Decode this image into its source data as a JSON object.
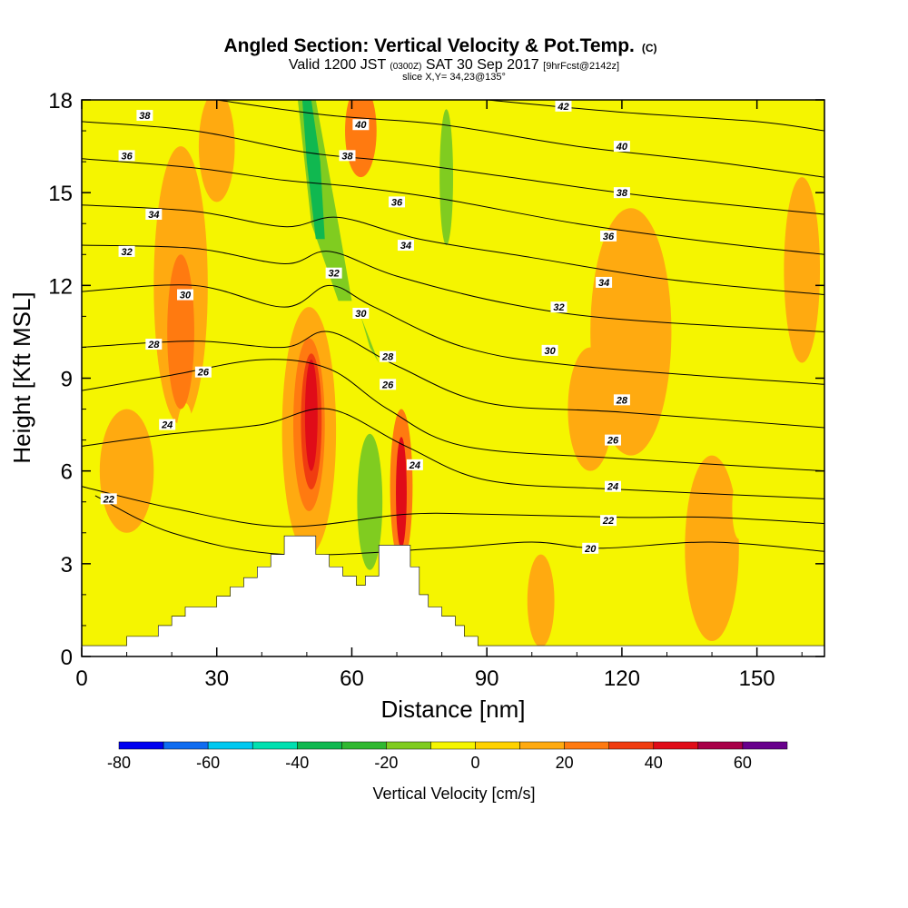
{
  "header": {
    "title": "Angled Section: Vertical Velocity & Pot.Temp.",
    "title_unit": "(C)",
    "valid_prefix": "Valid 1200 JST",
    "valid_z": "(0300Z)",
    "valid_date": "SAT 30 Sep 2017",
    "valid_fcst": "[9hrFcst@2142z]",
    "slice": "slice X,Y= 34,23@135°"
  },
  "chart_data": {
    "type": "contour",
    "xlabel": "Distance [nm]",
    "ylabel": "Height [Kft MSL]",
    "xlim": [
      0,
      165
    ],
    "ylim": [
      0,
      18
    ],
    "x_ticks": [
      0,
      30,
      60,
      90,
      120,
      150
    ],
    "y_ticks": [
      0,
      3,
      6,
      9,
      12,
      15,
      18
    ],
    "field_background_color": "#f5f500",
    "colorbar": {
      "label": "Vertical Velocity [cm/s]",
      "tick_values": [
        -80,
        -60,
        -40,
        -20,
        0,
        20,
        40,
        60
      ],
      "levels": [
        -80,
        -70,
        -60,
        -50,
        -40,
        -30,
        -20,
        -10,
        0,
        10,
        20,
        30,
        40,
        50,
        60,
        70
      ],
      "colors": [
        "#0000f0",
        "#0f6cf0",
        "#00c8f0",
        "#00e0b0",
        "#10b850",
        "#30b830",
        "#80cc20",
        "#f5f500",
        "#ffd200",
        "#ffaa10",
        "#ff7a10",
        "#f03c10",
        "#e00c18",
        "#a80048",
        "#68008c"
      ]
    },
    "vertical_velocity_cells": [
      {
        "x": 50.5,
        "y": 7.3,
        "rx": 6.0,
        "ry": 4.0,
        "value": 10
      },
      {
        "x": 50.5,
        "y": 7.5,
        "rx": 3.5,
        "ry": 2.8,
        "value": 20
      },
      {
        "x": 51,
        "y": 7.6,
        "rx": 2.3,
        "ry": 2.2,
        "value": 30
      },
      {
        "x": 51,
        "y": 7.8,
        "rx": 1.4,
        "ry": 1.8,
        "value": 40
      },
      {
        "x": 71,
        "y": 5.5,
        "rx": 2.5,
        "ry": 2.5,
        "value": 20
      },
      {
        "x": 71,
        "y": 5.3,
        "rx": 1.2,
        "ry": 1.8,
        "value": 40
      },
      {
        "x": 22,
        "y": 12.0,
        "rx": 6.0,
        "ry": 4.5,
        "value": 10
      },
      {
        "x": 22,
        "y": 10.5,
        "rx": 3.0,
        "ry": 2.5,
        "value": 20
      },
      {
        "x": 30,
        "y": 16.5,
        "rx": 4.0,
        "ry": 1.8,
        "value": 10
      },
      {
        "x": 62,
        "y": 17.0,
        "rx": 3.5,
        "ry": 1.5,
        "value": 20
      },
      {
        "x": 122,
        "y": 10.5,
        "rx": 9.0,
        "ry": 4.0,
        "value": 10
      },
      {
        "x": 102,
        "y": 1.8,
        "rx": 3.0,
        "ry": 1.5,
        "value": 10
      },
      {
        "x": 140,
        "y": 3.5,
        "rx": 6.0,
        "ry": 3.0,
        "value": 10
      },
      {
        "x": 160,
        "y": 12.5,
        "rx": 4.0,
        "ry": 3.0,
        "value": 10
      },
      {
        "x": 10,
        "y": 6.0,
        "rx": 6.0,
        "ry": 2.0,
        "value": 10
      },
      {
        "x": 113,
        "y": 8.0,
        "rx": 5.0,
        "ry": 2.0,
        "value": 10
      },
      {
        "x": 65,
        "y": 7.0,
        "rx": 4.0,
        "ry": 3.5,
        "value": -10
      },
      {
        "x": 64,
        "y": 5.0,
        "rx": 2.8,
        "ry": 2.2,
        "value": -20
      },
      {
        "x": 80,
        "y": 14.8,
        "rx": 3.8,
        "ry": 3.2,
        "value": -10
      },
      {
        "x": 81,
        "y": 15.5,
        "rx": 1.5,
        "ry": 2.2,
        "value": -20
      },
      {
        "x": 12,
        "y": 16.0,
        "rx": 3.0,
        "ry": 1.8,
        "value": -10
      },
      {
        "x": 23,
        "y": 6.0,
        "rx": 2.5,
        "ry": 2.2,
        "value": -10
      },
      {
        "x": 101,
        "y": 11.0,
        "rx": 2.5,
        "ry": 1.6,
        "value": -10
      },
      {
        "x": 146,
        "y": 4.8,
        "rx": 1.5,
        "ry": 1.0,
        "value": -10
      },
      {
        "x": 95,
        "y": 2.0,
        "rx": 1.5,
        "ry": 1.0,
        "value": -10
      }
    ],
    "vertical_velocity_bands": [
      {
        "points": [
          [
            46,
            18
          ],
          [
            54,
            18
          ],
          [
            61,
            13
          ],
          [
            65,
            9.5
          ],
          [
            61,
            9
          ],
          [
            54,
            11
          ],
          [
            48,
            14
          ]
        ],
        "value": -10
      },
      {
        "points": [
          [
            48,
            18
          ],
          [
            52,
            18
          ],
          [
            57,
            14
          ],
          [
            60,
            11.5
          ],
          [
            57,
            11.5
          ],
          [
            51,
            14
          ]
        ],
        "value": -20
      },
      {
        "points": [
          [
            49,
            18
          ],
          [
            51,
            18
          ],
          [
            53,
            16
          ],
          [
            54,
            13.5
          ],
          [
            52,
            13.5
          ],
          [
            50,
            16
          ]
        ],
        "value": -40
      },
      {
        "points": [
          [
            60,
            12
          ],
          [
            64,
            10
          ],
          [
            66,
            9.5
          ],
          [
            62,
            11
          ]
        ],
        "value": -20
      }
    ],
    "potential_temperature_contours": [
      {
        "label": "20",
        "points": [
          [
            3,
            5.2
          ],
          [
            20,
            4.0
          ],
          [
            45,
            3.3
          ],
          [
            80,
            3.5
          ],
          [
            100,
            3.7
          ],
          [
            115,
            3.5
          ],
          [
            140,
            3.7
          ],
          [
            165,
            3.4
          ]
        ]
      },
      {
        "label": "22",
        "points": [
          [
            0,
            5.5
          ],
          [
            20,
            4.8
          ],
          [
            45,
            4.2
          ],
          [
            72,
            4.6
          ],
          [
            90,
            4.6
          ],
          [
            120,
            4.5
          ],
          [
            140,
            4.5
          ],
          [
            165,
            4.3
          ]
        ]
      },
      {
        "label": "24",
        "points": [
          [
            0,
            6.8
          ],
          [
            20,
            7.2
          ],
          [
            40,
            7.5
          ],
          [
            55,
            8.0
          ],
          [
            72,
            6.8
          ],
          [
            90,
            5.7
          ],
          [
            120,
            5.4
          ],
          [
            165,
            5.1
          ]
        ]
      },
      {
        "label": "26",
        "points": [
          [
            0,
            8.6
          ],
          [
            20,
            9.1
          ],
          [
            40,
            9.6
          ],
          [
            55,
            9.3
          ],
          [
            68,
            8.0
          ],
          [
            85,
            6.8
          ],
          [
            120,
            6.4
          ],
          [
            165,
            6.0
          ]
        ]
      },
      {
        "label": "28",
        "points": [
          [
            0,
            10.0
          ],
          [
            25,
            10.2
          ],
          [
            45,
            10.0
          ],
          [
            55,
            10.5
          ],
          [
            70,
            9.4
          ],
          [
            90,
            8.2
          ],
          [
            120,
            7.9
          ],
          [
            165,
            7.4
          ]
        ]
      },
      {
        "label": "30",
        "points": [
          [
            0,
            11.8
          ],
          [
            25,
            12.0
          ],
          [
            45,
            11.3
          ],
          [
            55,
            12.0
          ],
          [
            65,
            11.3
          ],
          [
            85,
            10.0
          ],
          [
            110,
            9.4
          ],
          [
            165,
            8.8
          ]
        ]
      },
      {
        "label": "32",
        "points": [
          [
            0,
            13.3
          ],
          [
            25,
            13.2
          ],
          [
            45,
            12.7
          ],
          [
            55,
            13.1
          ],
          [
            70,
            12.3
          ],
          [
            95,
            11.4
          ],
          [
            120,
            10.9
          ],
          [
            165,
            10.5
          ]
        ]
      },
      {
        "label": "34",
        "points": [
          [
            0,
            14.6
          ],
          [
            25,
            14.4
          ],
          [
            45,
            13.9
          ],
          [
            57,
            14.2
          ],
          [
            75,
            13.5
          ],
          [
            100,
            12.9
          ],
          [
            130,
            12.2
          ],
          [
            165,
            11.7
          ]
        ]
      },
      {
        "label": "36",
        "points": [
          [
            0,
            16.1
          ],
          [
            25,
            15.8
          ],
          [
            45,
            15.4
          ],
          [
            60,
            15.2
          ],
          [
            80,
            14.8
          ],
          [
            110,
            14.0
          ],
          [
            140,
            13.4
          ],
          [
            165,
            13.0
          ]
        ]
      },
      {
        "label": "38",
        "points": [
          [
            0,
            17.3
          ],
          [
            25,
            17.0
          ],
          [
            50,
            16.3
          ],
          [
            70,
            16.0
          ],
          [
            95,
            15.5
          ],
          [
            125,
            14.9
          ],
          [
            165,
            14.3
          ]
        ]
      },
      {
        "label": "40",
        "points": [
          [
            30,
            18.0
          ],
          [
            55,
            17.5
          ],
          [
            80,
            17.2
          ],
          [
            110,
            16.5
          ],
          [
            140,
            16.0
          ],
          [
            165,
            15.5
          ]
        ]
      },
      {
        "label": "42",
        "points": [
          [
            90,
            18.0
          ],
          [
            120,
            17.6
          ],
          [
            150,
            17.3
          ],
          [
            165,
            17.0
          ]
        ]
      }
    ],
    "contour_labels": [
      {
        "text": "38",
        "x": 14,
        "y": 17.5
      },
      {
        "text": "36",
        "x": 10,
        "y": 16.2
      },
      {
        "text": "34",
        "x": 16,
        "y": 14.3
      },
      {
        "text": "32",
        "x": 10,
        "y": 13.1
      },
      {
        "text": "30",
        "x": 23,
        "y": 11.7
      },
      {
        "text": "28",
        "x": 16,
        "y": 10.1
      },
      {
        "text": "26",
        "x": 27,
        "y": 9.2
      },
      {
        "text": "24",
        "x": 19,
        "y": 7.5
      },
      {
        "text": "22",
        "x": 6,
        "y": 5.1
      },
      {
        "text": "40",
        "x": 62,
        "y": 17.2
      },
      {
        "text": "38",
        "x": 59,
        "y": 16.2
      },
      {
        "text": "36",
        "x": 70,
        "y": 14.7
      },
      {
        "text": "34",
        "x": 72,
        "y": 13.3
      },
      {
        "text": "32",
        "x": 56,
        "y": 12.4
      },
      {
        "text": "30",
        "x": 62,
        "y": 11.1
      },
      {
        "text": "28",
        "x": 68,
        "y": 9.7
      },
      {
        "text": "26",
        "x": 68,
        "y": 8.8
      },
      {
        "text": "24",
        "x": 74,
        "y": 6.2
      },
      {
        "text": "42",
        "x": 107,
        "y": 17.8
      },
      {
        "text": "40",
        "x": 120,
        "y": 16.5
      },
      {
        "text": "38",
        "x": 120,
        "y": 15.0
      },
      {
        "text": "36",
        "x": 117,
        "y": 13.6
      },
      {
        "text": "34",
        "x": 116,
        "y": 12.1
      },
      {
        "text": "32",
        "x": 106,
        "y": 11.3
      },
      {
        "text": "30",
        "x": 104,
        "y": 9.9
      },
      {
        "text": "28",
        "x": 120,
        "y": 8.3
      },
      {
        "text": "26",
        "x": 118,
        "y": 7.0
      },
      {
        "text": "24",
        "x": 118,
        "y": 5.5
      },
      {
        "text": "22",
        "x": 117,
        "y": 4.4
      },
      {
        "text": "20",
        "x": 113,
        "y": 3.5
      }
    ],
    "terrain": [
      [
        0,
        0.35
      ],
      [
        10,
        0.35
      ],
      [
        10,
        0.65
      ],
      [
        17,
        0.65
      ],
      [
        17,
        1.0
      ],
      [
        20,
        1.0
      ],
      [
        20,
        1.3
      ],
      [
        23,
        1.3
      ],
      [
        23,
        1.6
      ],
      [
        30,
        1.6
      ],
      [
        30,
        1.95
      ],
      [
        33,
        1.95
      ],
      [
        33,
        2.25
      ],
      [
        36,
        2.25
      ],
      [
        36,
        2.55
      ],
      [
        39,
        2.55
      ],
      [
        39,
        2.9
      ],
      [
        42,
        2.9
      ],
      [
        42,
        3.3
      ],
      [
        45,
        3.3
      ],
      [
        45,
        3.9
      ],
      [
        52,
        3.9
      ],
      [
        52,
        3.3
      ],
      [
        55,
        3.3
      ],
      [
        55,
        2.9
      ],
      [
        58,
        2.9
      ],
      [
        58,
        2.6
      ],
      [
        61,
        2.6
      ],
      [
        61,
        2.3
      ],
      [
        63,
        2.3
      ],
      [
        63,
        2.6
      ],
      [
        66,
        2.6
      ],
      [
        66,
        3.6
      ],
      [
        73,
        3.6
      ],
      [
        73,
        2.9
      ],
      [
        75,
        2.9
      ],
      [
        75,
        2.0
      ],
      [
        77,
        2.0
      ],
      [
        77,
        1.6
      ],
      [
        80,
        1.6
      ],
      [
        80,
        1.3
      ],
      [
        83,
        1.3
      ],
      [
        83,
        1.0
      ],
      [
        85,
        1.0
      ],
      [
        85,
        0.65
      ],
      [
        88,
        0.65
      ],
      [
        88,
        0.35
      ],
      [
        165,
        0.35
      ]
    ]
  }
}
